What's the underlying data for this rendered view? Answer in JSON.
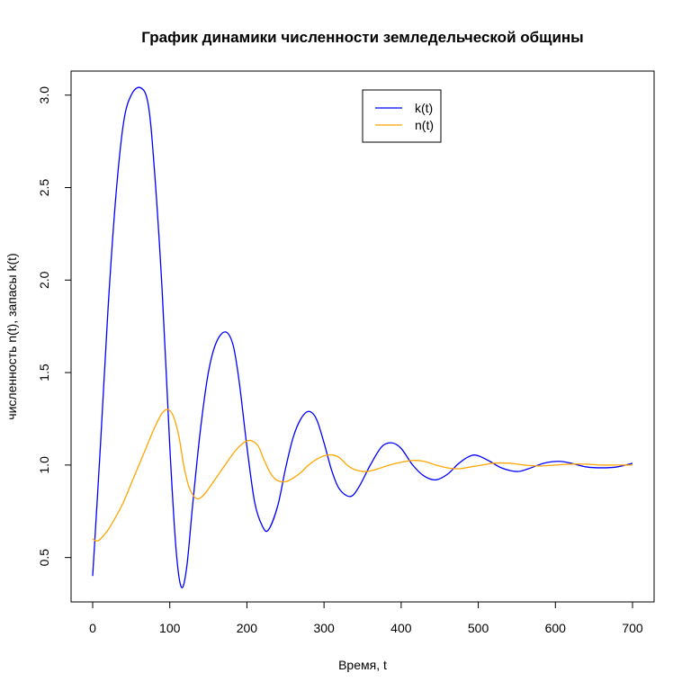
{
  "chart_data": {
    "type": "line",
    "title": "График динамики численности земледельческой общины",
    "xlabel": "Время, t",
    "ylabel": "численность n(t), запасы k(t)",
    "xlim": [
      -28,
      728
    ],
    "ylim": [
      0.26,
      3.13
    ],
    "x_ticks": [
      0,
      100,
      200,
      300,
      400,
      500,
      600,
      700
    ],
    "y_ticks": [
      0.5,
      1.0,
      1.5,
      2.0,
      2.5,
      3.0
    ],
    "x_tick_labels": [
      "0",
      "100",
      "200",
      "300",
      "400",
      "500",
      "600",
      "700"
    ],
    "y_tick_labels": [
      "0.5",
      "1.0",
      "1.5",
      "2.0",
      "2.5",
      "3.0"
    ],
    "legend_position": "top-center",
    "grid": false,
    "series": [
      {
        "name": "k(t)",
        "color": "#0000ff",
        "points": [
          [
            0,
            0.4
          ],
          [
            10,
            1.1
          ],
          [
            20,
            1.85
          ],
          [
            30,
            2.45
          ],
          [
            40,
            2.85
          ],
          [
            50,
            3.0
          ],
          [
            62,
            3.04
          ],
          [
            72,
            2.95
          ],
          [
            80,
            2.6
          ],
          [
            90,
            1.95
          ],
          [
            100,
            1.1
          ],
          [
            108,
            0.55
          ],
          [
            115,
            0.34
          ],
          [
            122,
            0.45
          ],
          [
            130,
            0.8
          ],
          [
            140,
            1.2
          ],
          [
            150,
            1.5
          ],
          [
            160,
            1.66
          ],
          [
            172,
            1.72
          ],
          [
            182,
            1.65
          ],
          [
            190,
            1.45
          ],
          [
            200,
            1.1
          ],
          [
            210,
            0.8
          ],
          [
            220,
            0.67
          ],
          [
            228,
            0.65
          ],
          [
            240,
            0.78
          ],
          [
            250,
            0.98
          ],
          [
            260,
            1.15
          ],
          [
            270,
            1.25
          ],
          [
            280,
            1.29
          ],
          [
            290,
            1.25
          ],
          [
            300,
            1.12
          ],
          [
            310,
            0.97
          ],
          [
            320,
            0.87
          ],
          [
            334,
            0.83
          ],
          [
            345,
            0.88
          ],
          [
            360,
            1.0
          ],
          [
            375,
            1.1
          ],
          [
            388,
            1.12
          ],
          [
            400,
            1.09
          ],
          [
            415,
            1.0
          ],
          [
            430,
            0.94
          ],
          [
            445,
            0.92
          ],
          [
            460,
            0.95
          ],
          [
            475,
            1.01
          ],
          [
            490,
            1.05
          ],
          [
            500,
            1.05
          ],
          [
            515,
            1.02
          ],
          [
            530,
            0.985
          ],
          [
            550,
            0.965
          ],
          [
            565,
            0.98
          ],
          [
            585,
            1.01
          ],
          [
            605,
            1.02
          ],
          [
            620,
            1.01
          ],
          [
            640,
            0.99
          ],
          [
            660,
            0.985
          ],
          [
            680,
            0.99
          ],
          [
            700,
            1.01
          ]
        ]
      },
      {
        "name": "n(t)",
        "color": "#ffa500",
        "points": [
          [
            0,
            0.6
          ],
          [
            5,
            0.59
          ],
          [
            10,
            0.6
          ],
          [
            20,
            0.65
          ],
          [
            30,
            0.72
          ],
          [
            40,
            0.8
          ],
          [
            50,
            0.9
          ],
          [
            60,
            1.0
          ],
          [
            70,
            1.1
          ],
          [
            80,
            1.2
          ],
          [
            90,
            1.28
          ],
          [
            98,
            1.3
          ],
          [
            105,
            1.26
          ],
          [
            112,
            1.15
          ],
          [
            118,
            1.0
          ],
          [
            125,
            0.88
          ],
          [
            134,
            0.82
          ],
          [
            142,
            0.83
          ],
          [
            150,
            0.87
          ],
          [
            160,
            0.93
          ],
          [
            170,
            0.99
          ],
          [
            180,
            1.05
          ],
          [
            190,
            1.1
          ],
          [
            200,
            1.13
          ],
          [
            207,
            1.13
          ],
          [
            215,
            1.1
          ],
          [
            222,
            1.03
          ],
          [
            230,
            0.96
          ],
          [
            238,
            0.92
          ],
          [
            250,
            0.91
          ],
          [
            260,
            0.93
          ],
          [
            270,
            0.96
          ],
          [
            280,
            1.0
          ],
          [
            290,
            1.03
          ],
          [
            300,
            1.05
          ],
          [
            310,
            1.055
          ],
          [
            320,
            1.04
          ],
          [
            330,
            1.0
          ],
          [
            340,
            0.975
          ],
          [
            355,
            0.965
          ],
          [
            370,
            0.98
          ],
          [
            385,
            1.0
          ],
          [
            400,
            1.015
          ],
          [
            415,
            1.025
          ],
          [
            430,
            1.02
          ],
          [
            445,
            1.0
          ],
          [
            460,
            0.985
          ],
          [
            475,
            0.98
          ],
          [
            490,
            0.99
          ],
          [
            505,
            1.0
          ],
          [
            520,
            1.01
          ],
          [
            540,
            1.01
          ],
          [
            560,
            1.0
          ],
          [
            580,
            0.995
          ],
          [
            600,
            1.0
          ],
          [
            620,
            1.005
          ],
          [
            640,
            1.005
          ],
          [
            660,
            1.0
          ],
          [
            680,
            1.0
          ],
          [
            700,
            1.0
          ]
        ]
      }
    ]
  }
}
